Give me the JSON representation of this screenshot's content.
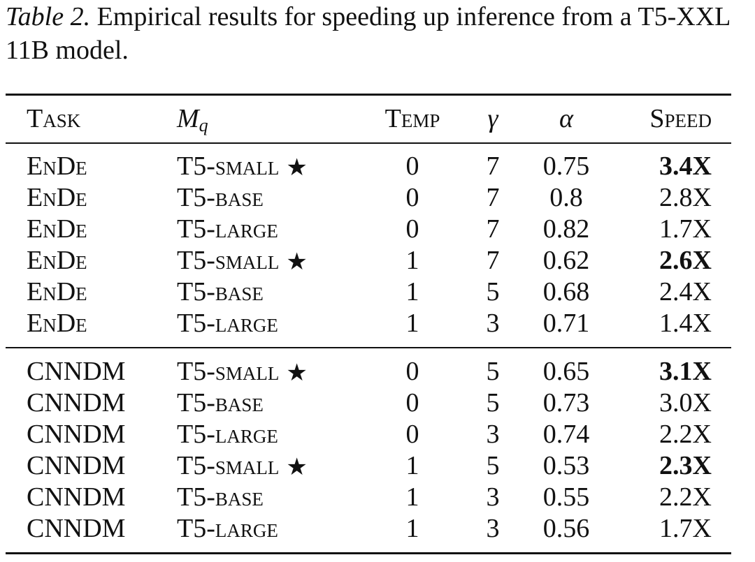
{
  "caption": {
    "label": "Table 2.",
    "text": "Empirical results for speeding up inference from a T5-XXL 11B model."
  },
  "table": {
    "headers": {
      "task": "Task",
      "mq_symbol": "M",
      "mq_subscript": "q",
      "temp": "Temp",
      "gamma": "γ",
      "alpha": "α",
      "speed": "Speed"
    },
    "groups": [
      {
        "rows": [
          {
            "task": "EnDe",
            "mq": "T5-small",
            "star": "★",
            "temp": "0",
            "gamma": "7",
            "alpha": "0.75",
            "speed": "3.4X",
            "best": true
          },
          {
            "task": "EnDe",
            "mq": "T5-base",
            "star": "",
            "temp": "0",
            "gamma": "7",
            "alpha": "0.8",
            "speed": "2.8X",
            "best": false
          },
          {
            "task": "EnDe",
            "mq": "T5-large",
            "star": "",
            "temp": "0",
            "gamma": "7",
            "alpha": "0.82",
            "speed": "1.7X",
            "best": false
          },
          {
            "task": "EnDe",
            "mq": "T5-small",
            "star": "★",
            "temp": "1",
            "gamma": "7",
            "alpha": "0.62",
            "speed": "2.6X",
            "best": true
          },
          {
            "task": "EnDe",
            "mq": "T5-base",
            "star": "",
            "temp": "1",
            "gamma": "5",
            "alpha": "0.68",
            "speed": "2.4X",
            "best": false
          },
          {
            "task": "EnDe",
            "mq": "T5-large",
            "star": "",
            "temp": "1",
            "gamma": "3",
            "alpha": "0.71",
            "speed": "1.4X",
            "best": false
          }
        ]
      },
      {
        "rows": [
          {
            "task": "CNNDM",
            "mq": "T5-small",
            "star": "★",
            "temp": "0",
            "gamma": "5",
            "alpha": "0.65",
            "speed": "3.1X",
            "best": true
          },
          {
            "task": "CNNDM",
            "mq": "T5-base",
            "star": "",
            "temp": "0",
            "gamma": "5",
            "alpha": "0.73",
            "speed": "3.0X",
            "best": false
          },
          {
            "task": "CNNDM",
            "mq": "T5-large",
            "star": "",
            "temp": "0",
            "gamma": "3",
            "alpha": "0.74",
            "speed": "2.2X",
            "best": false
          },
          {
            "task": "CNNDM",
            "mq": "T5-small",
            "star": "★",
            "temp": "1",
            "gamma": "5",
            "alpha": "0.53",
            "speed": "2.3X",
            "best": true
          },
          {
            "task": "CNNDM",
            "mq": "T5-base",
            "star": "",
            "temp": "1",
            "gamma": "3",
            "alpha": "0.55",
            "speed": "2.2X",
            "best": false
          },
          {
            "task": "CNNDM",
            "mq": "T5-large",
            "star": "",
            "temp": "1",
            "gamma": "3",
            "alpha": "0.56",
            "speed": "1.7X",
            "best": false
          }
        ]
      }
    ]
  }
}
